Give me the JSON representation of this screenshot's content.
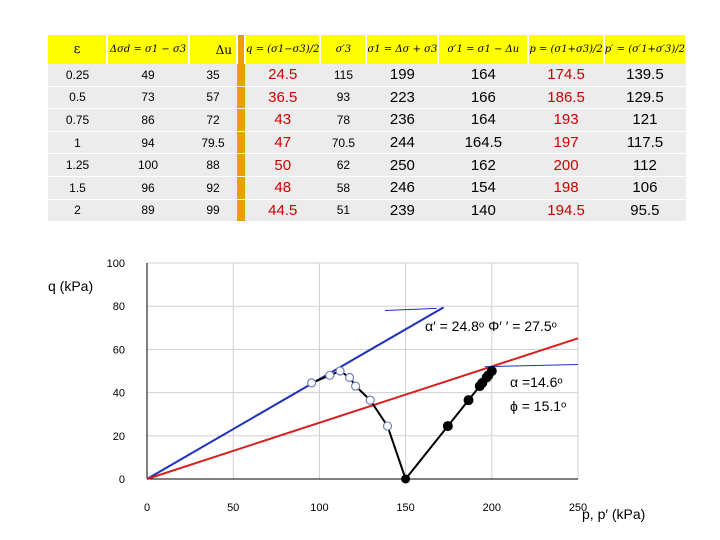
{
  "table": {
    "headers": [
      "ε",
      "Δσd = σ1 − σ3",
      "Δu",
      "q = (σ1−σ3)/2",
      "σ′3",
      "σ1 = Δσ + σ3",
      "σ′1 = σ1 − Δu",
      "p = (σ1+σ3)/2",
      "p′ = (σ′1+σ′3)/2"
    ],
    "rows": [
      [
        "0.25",
        "49",
        "35",
        "24.5",
        "115",
        "199",
        "164",
        "174.5",
        "139.5"
      ],
      [
        "0.5",
        "73",
        "57",
        "36.5",
        "93",
        "223",
        "166",
        "186.5",
        "129.5"
      ],
      [
        "0.75",
        "86",
        "72",
        "43",
        "78",
        "236",
        "164",
        "193",
        "121"
      ],
      [
        "1",
        "94",
        "79.5",
        "47",
        "70.5",
        "244",
        "164.5",
        "197",
        "117.5"
      ],
      [
        "1.25",
        "100",
        "88",
        "50",
        "62",
        "250",
        "162",
        "200",
        "112"
      ],
      [
        "1.5",
        "96",
        "92",
        "48",
        "58",
        "246",
        "154",
        "198",
        "106"
      ],
      [
        "2",
        "89",
        "99",
        "44.5",
        "51",
        "239",
        "140",
        "194.5",
        "95.5"
      ]
    ]
  },
  "chart_data": {
    "type": "scatter",
    "ylabel": "q (kPa)",
    "xlabel": "p, p′  (kPa)",
    "xlim": [
      0,
      250
    ],
    "ylim": [
      0,
      100
    ],
    "xticks": [
      "0",
      "50",
      "100",
      "150",
      "200",
      "250"
    ],
    "yticks": [
      "0",
      "20",
      "40",
      "60",
      "80",
      "100"
    ],
    "grid": true,
    "effective_path": {
      "marker": "open-circle",
      "points": [
        [
          139.5,
          24.5
        ],
        [
          129.5,
          36.5
        ],
        [
          121,
          43
        ],
        [
          117.5,
          47
        ],
        [
          112,
          50
        ],
        [
          106,
          48
        ],
        [
          95.5,
          44.5
        ]
      ]
    },
    "total_path": {
      "marker": "filled-circle",
      "points": [
        [
          174.5,
          24.5
        ],
        [
          186.5,
          36.5
        ],
        [
          193,
          43
        ],
        [
          197,
          47
        ],
        [
          200,
          50
        ],
        [
          198,
          48
        ],
        [
          194.5,
          44.5
        ]
      ]
    },
    "start_point": [
      150,
      0
    ],
    "envelopes": [
      {
        "color": "#1f2fbf",
        "slope_deg": 24.8
      },
      {
        "color": "#d62020",
        "slope_deg": 14.6
      }
    ],
    "annotations": {
      "effective": "α′ = 24.8ᵒ  Φ′ ′ = 27.5ᵒ",
      "total_alpha": "α =14.6ᵒ",
      "total_phi": "ϕ = 15.1ᵒ"
    }
  }
}
